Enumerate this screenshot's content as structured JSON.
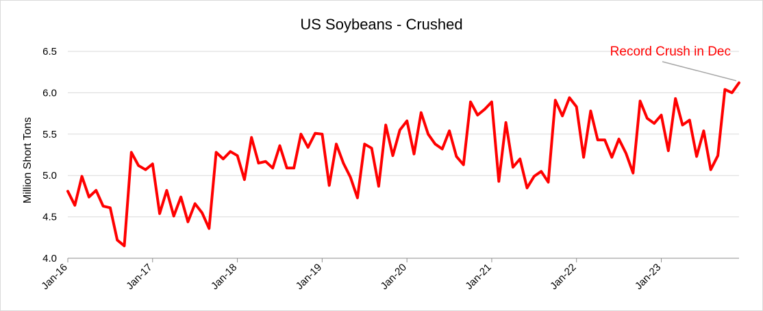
{
  "chart_data": {
    "type": "line",
    "title": "US Soybeans - Crushed",
    "xlabel": "",
    "ylabel": "Million Short Tons",
    "ylim": [
      4.0,
      6.5
    ],
    "yticks": [
      "4.0",
      "4.5",
      "5.0",
      "5.5",
      "6.0",
      "6.5"
    ],
    "xtick_labels": [
      "Jan-16",
      "Jan-17",
      "Jan-18",
      "Jan-19",
      "Jan-20",
      "Jan-21",
      "Jan-22",
      "Jan-23"
    ],
    "grid": "horizontal",
    "legend": "none",
    "series": [
      {
        "color": "#ff0000",
        "x_start": "Jan-16",
        "frequency": "monthly",
        "values": [
          4.81,
          4.64,
          4.99,
          4.74,
          4.82,
          4.63,
          4.61,
          4.22,
          4.15,
          5.28,
          5.12,
          5.07,
          5.14,
          4.54,
          4.82,
          4.51,
          4.74,
          4.44,
          4.66,
          4.55,
          4.36,
          5.28,
          5.2,
          5.29,
          5.24,
          4.95,
          5.46,
          5.15,
          5.17,
          5.09,
          5.36,
          5.09,
          5.09,
          5.5,
          5.34,
          5.51,
          5.5,
          4.88,
          5.38,
          5.15,
          4.98,
          4.73,
          5.38,
          5.33,
          4.87,
          5.61,
          5.24,
          5.55,
          5.66,
          5.26,
          5.76,
          5.5,
          5.38,
          5.32,
          5.54,
          5.23,
          5.13,
          5.89,
          5.73,
          5.8,
          5.89,
          4.93,
          5.64,
          5.1,
          5.2,
          4.85,
          4.99,
          5.05,
          4.92,
          5.91,
          5.72,
          5.94,
          5.83,
          5.22,
          5.78,
          5.43,
          5.43,
          5.22,
          5.44,
          5.27,
          5.03,
          5.9,
          5.69,
          5.63,
          5.73,
          5.3,
          5.93,
          5.61,
          5.67,
          5.23,
          5.54,
          5.07,
          5.24,
          6.04,
          6.0,
          6.12
        ]
      }
    ],
    "annotation": {
      "text": "Record Crush in Dec",
      "color": "#ff0000",
      "points_to": "Dec-23"
    }
  }
}
